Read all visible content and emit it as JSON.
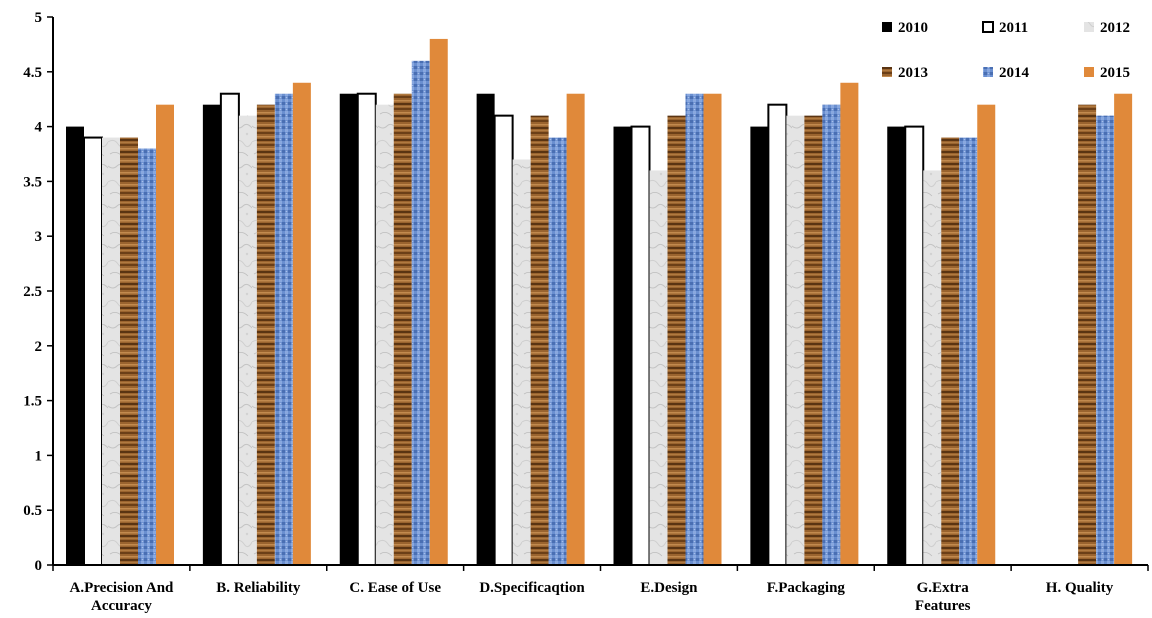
{
  "chart_data": {
    "type": "bar",
    "categories": [
      [
        "A.Precision And",
        "Accuracy"
      ],
      [
        "B. Reliability"
      ],
      [
        "C. Ease of Use"
      ],
      [
        "D.Specificaqtion"
      ],
      [
        "E.Design"
      ],
      [
        "F.Packaging"
      ],
      [
        "G.Extra",
        "Features"
      ],
      [
        "H. Quality"
      ]
    ],
    "series": [
      {
        "name": "2010",
        "style": "solid-black",
        "color": "#000000",
        "values": [
          4.0,
          4.2,
          4.3,
          4.3,
          4.0,
          4.0,
          4.0,
          null
        ]
      },
      {
        "name": "2011",
        "style": "white-outline",
        "color": "#ffffff",
        "values": [
          3.9,
          4.3,
          4.3,
          4.1,
          4.0,
          4.2,
          4.0,
          null
        ]
      },
      {
        "name": "2012",
        "style": "marble",
        "color": "#e2e2e2",
        "values": [
          3.9,
          4.1,
          4.2,
          3.7,
          3.6,
          4.1,
          3.6,
          null
        ]
      },
      {
        "name": "2013",
        "style": "wood",
        "color": "#8a5a2b",
        "values": [
          3.9,
          4.2,
          4.3,
          4.1,
          4.1,
          4.1,
          3.9,
          4.2
        ]
      },
      {
        "name": "2014",
        "style": "blue-texture",
        "color": "#5b82c4",
        "values": [
          3.8,
          4.3,
          4.6,
          3.9,
          4.3,
          4.2,
          3.9,
          4.1
        ]
      },
      {
        "name": "2015",
        "style": "solid-orange",
        "color": "#e0893a",
        "values": [
          4.2,
          4.4,
          4.8,
          4.3,
          4.3,
          4.4,
          4.2,
          4.3
        ]
      }
    ],
    "y_ticks": [
      "0",
      "0.5",
      "1",
      "1.5",
      "2",
      "2.5",
      "3",
      "3.5",
      "4",
      "4.5",
      "5"
    ],
    "ylim": [
      0,
      5
    ],
    "legend_position": "top-right",
    "grid": false
  }
}
